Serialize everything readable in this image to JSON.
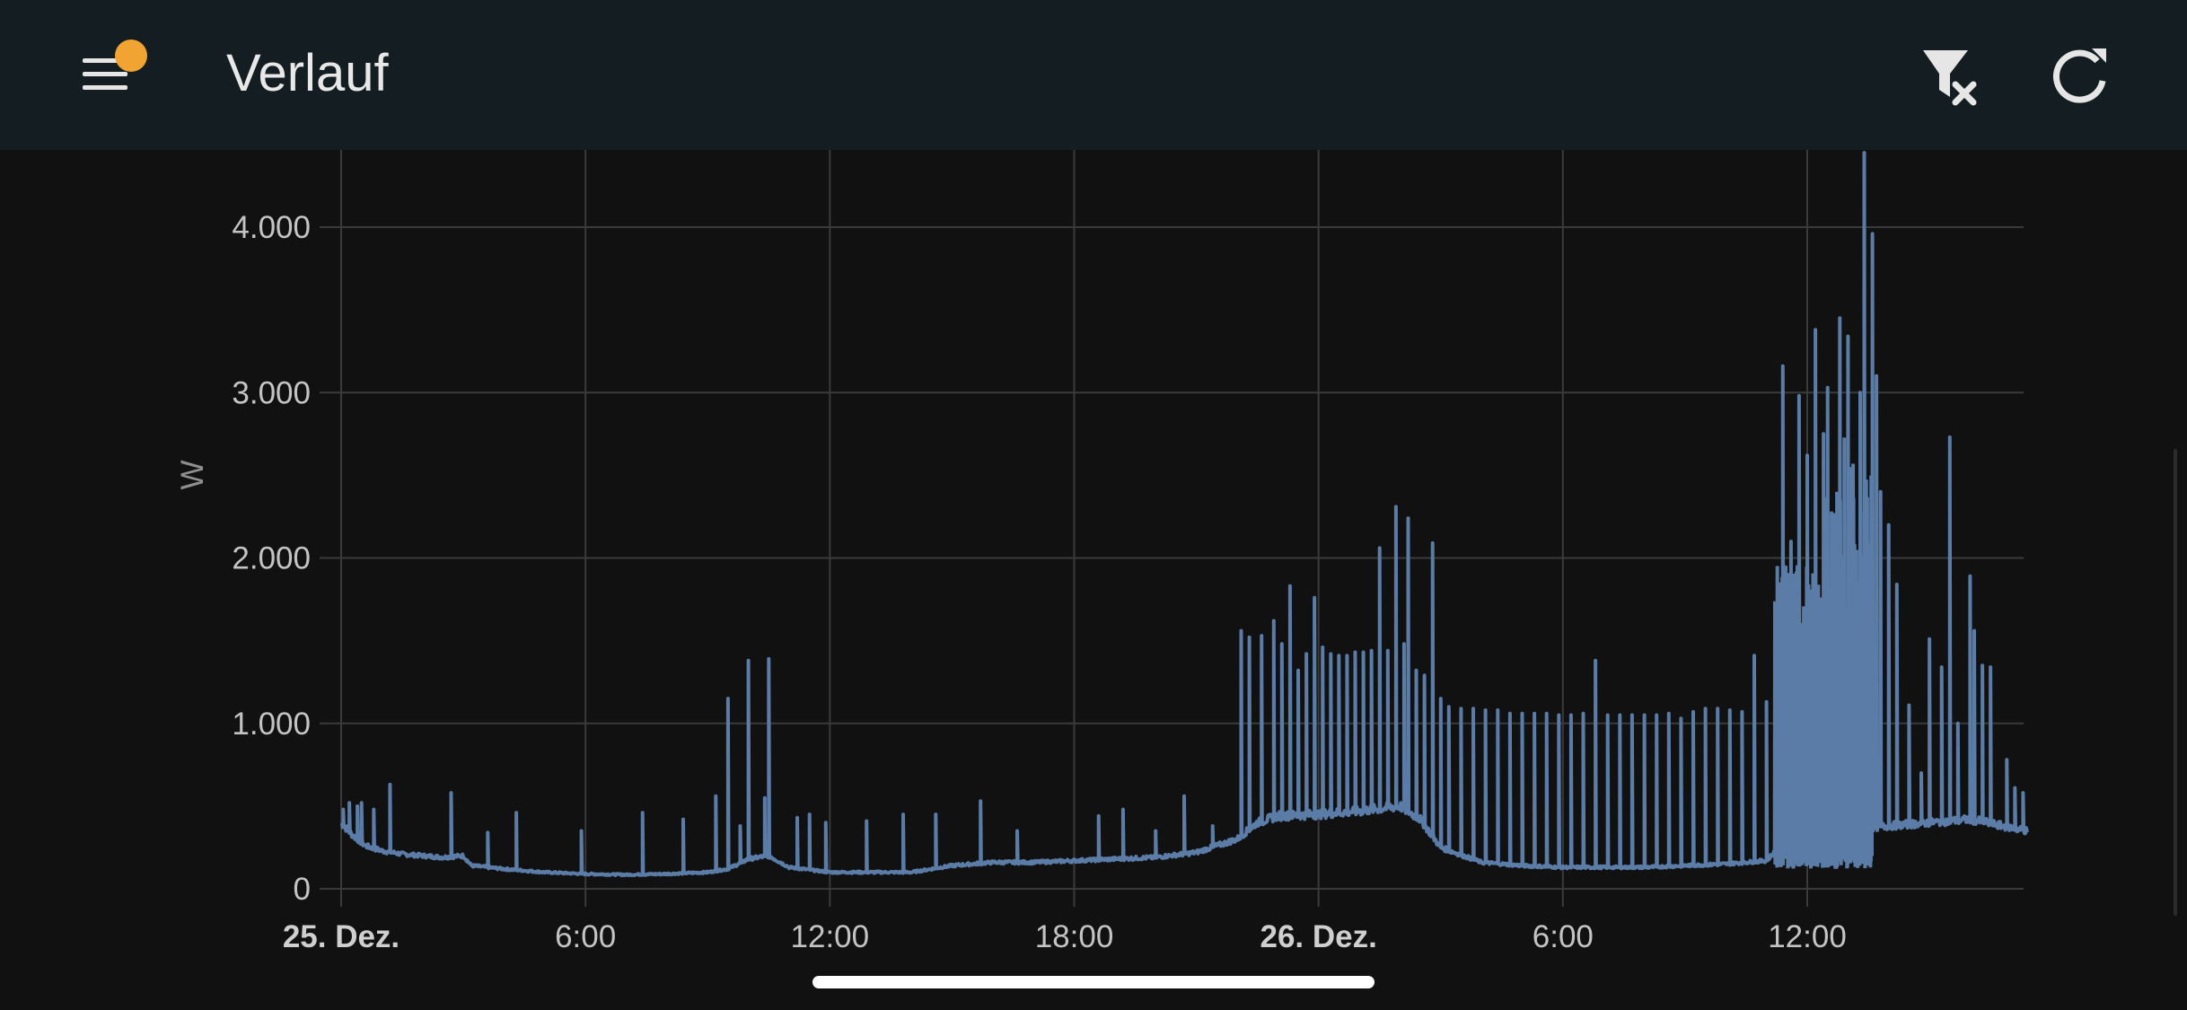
{
  "toolbar": {
    "title": "Verlauf",
    "menu_icon": "menu-icon",
    "notification_badge_color": "#f1a431",
    "filter_icon": "filter-remove-icon",
    "refresh_icon": "refresh-icon"
  },
  "chart_data": {
    "type": "line",
    "title": "",
    "ylabel": "W",
    "xlabel": "",
    "x_unit": "hours from 25. Dez. 00:00",
    "xlim": [
      0,
      41.4
    ],
    "ylim": [
      0,
      4400
    ],
    "grid": true,
    "series_color": "#5a7ca6",
    "x_ticks": [
      {
        "value": 0,
        "label": "25. Dez.",
        "major": true
      },
      {
        "value": 6,
        "label": "6:00",
        "major": false
      },
      {
        "value": 12,
        "label": "12:00",
        "major": false
      },
      {
        "value": 18,
        "label": "18:00",
        "major": false
      },
      {
        "value": 24,
        "label": "26. Dez.",
        "major": true
      },
      {
        "value": 30,
        "label": "6:00",
        "major": false
      },
      {
        "value": 36,
        "label": "12:00",
        "major": false
      }
    ],
    "y_ticks": [
      {
        "value": 0,
        "label": "0"
      },
      {
        "value": 1000,
        "label": "1.000"
      },
      {
        "value": 2000,
        "label": "2.000"
      },
      {
        "value": 3000,
        "label": "3.000"
      },
      {
        "value": 4000,
        "label": "4.000"
      }
    ],
    "series": [
      {
        "name": "",
        "baseline": [
          [
            0,
            400
          ],
          [
            0.3,
            320
          ],
          [
            0.6,
            260
          ],
          [
            1,
            230
          ],
          [
            1.5,
            210
          ],
          [
            2,
            200
          ],
          [
            2.5,
            190
          ],
          [
            3,
            200
          ],
          [
            3.2,
            140
          ],
          [
            4,
            120
          ],
          [
            5,
            100
          ],
          [
            6,
            90
          ],
          [
            7,
            85
          ],
          [
            8,
            90
          ],
          [
            9,
            100
          ],
          [
            9.5,
            120
          ],
          [
            10,
            180
          ],
          [
            10.5,
            200
          ],
          [
            11,
            130
          ],
          [
            12,
            100
          ],
          [
            13,
            100
          ],
          [
            14,
            100
          ],
          [
            15,
            140
          ],
          [
            16,
            160
          ],
          [
            17,
            160
          ],
          [
            18,
            170
          ],
          [
            19,
            180
          ],
          [
            20,
            190
          ],
          [
            21,
            220
          ],
          [
            21.5,
            260
          ],
          [
            22,
            300
          ],
          [
            22.5,
            400
          ],
          [
            23,
            440
          ],
          [
            24,
            450
          ],
          [
            25,
            470
          ],
          [
            26,
            500
          ],
          [
            26.5,
            420
          ],
          [
            27,
            250
          ],
          [
            28,
            160
          ],
          [
            29,
            140
          ],
          [
            30,
            130
          ],
          [
            31,
            130
          ],
          [
            32,
            130
          ],
          [
            33,
            140
          ],
          [
            34,
            150
          ],
          [
            35,
            170
          ],
          [
            35.5,
            300
          ],
          [
            36,
            350
          ],
          [
            37,
            360
          ],
          [
            38,
            380
          ],
          [
            39,
            400
          ],
          [
            40,
            420
          ],
          [
            41.4,
            350
          ]
        ],
        "spikes": [
          [
            0.05,
            480
          ],
          [
            0.2,
            520
          ],
          [
            0.4,
            500
          ],
          [
            0.5,
            520
          ],
          [
            0.8,
            480
          ],
          [
            1.2,
            600
          ],
          [
            1.2,
            630
          ],
          [
            2.7,
            580
          ],
          [
            3.6,
            340
          ],
          [
            4.3,
            460
          ],
          [
            5.9,
            350
          ],
          [
            7.4,
            460
          ],
          [
            8.4,
            420
          ],
          [
            9.2,
            560
          ],
          [
            9.5,
            1150
          ],
          [
            9.8,
            380
          ],
          [
            10.0,
            1380
          ],
          [
            10.4,
            550
          ],
          [
            10.5,
            1390
          ],
          [
            11.2,
            430
          ],
          [
            11.5,
            450
          ],
          [
            11.9,
            400
          ],
          [
            12.9,
            410
          ],
          [
            13.8,
            450
          ],
          [
            14.6,
            450
          ],
          [
            15.7,
            530
          ],
          [
            16.6,
            350
          ],
          [
            18.6,
            440
          ],
          [
            19.2,
            480
          ],
          [
            20.0,
            350
          ],
          [
            20.7,
            560
          ],
          [
            21.4,
            380
          ],
          [
            22.1,
            1560
          ],
          [
            22.3,
            1520
          ],
          [
            22.6,
            1530
          ],
          [
            22.9,
            1620
          ],
          [
            23.1,
            1480
          ],
          [
            23.3,
            1830
          ],
          [
            23.5,
            1320
          ],
          [
            23.7,
            1420
          ],
          [
            23.9,
            1760
          ],
          [
            24.1,
            1460
          ],
          [
            24.3,
            1420
          ],
          [
            24.5,
            1410
          ],
          [
            24.7,
            1410
          ],
          [
            24.9,
            1430
          ],
          [
            25.1,
            1430
          ],
          [
            25.3,
            1440
          ],
          [
            25.5,
            2060
          ],
          [
            25.7,
            1440
          ],
          [
            25.9,
            2310
          ],
          [
            26.1,
            1480
          ],
          [
            26.2,
            2240
          ],
          [
            26.4,
            1320
          ],
          [
            26.6,
            1290
          ],
          [
            26.8,
            2090
          ],
          [
            27.0,
            1150
          ],
          [
            27.2,
            1100
          ],
          [
            27.5,
            1090
          ],
          [
            27.8,
            1090
          ],
          [
            28.1,
            1080
          ],
          [
            28.4,
            1080
          ],
          [
            28.7,
            1060
          ],
          [
            29.0,
            1060
          ],
          [
            29.3,
            1060
          ],
          [
            29.6,
            1060
          ],
          [
            29.9,
            1050
          ],
          [
            30.2,
            1050
          ],
          [
            30.5,
            1060
          ],
          [
            30.8,
            1380
          ],
          [
            31.1,
            1050
          ],
          [
            31.4,
            1050
          ],
          [
            31.7,
            1050
          ],
          [
            32.0,
            1050
          ],
          [
            32.3,
            1050
          ],
          [
            32.6,
            1060
          ],
          [
            32.9,
            1030
          ],
          [
            33.2,
            1070
          ],
          [
            33.5,
            1090
          ],
          [
            33.8,
            1090
          ],
          [
            34.1,
            1080
          ],
          [
            34.4,
            1070
          ],
          [
            34.7,
            1410
          ],
          [
            35.0,
            1130
          ],
          [
            35.3,
            1150
          ],
          [
            35.4,
            3160
          ],
          [
            35.6,
            2100
          ],
          [
            35.8,
            2980
          ],
          [
            36.0,
            2620
          ],
          [
            36.2,
            3380
          ],
          [
            36.4,
            2750
          ],
          [
            36.5,
            3030
          ],
          [
            36.6,
            2260
          ],
          [
            36.8,
            3450
          ],
          [
            36.9,
            2010
          ],
          [
            37.0,
            3340
          ],
          [
            37.3,
            3000
          ],
          [
            37.4,
            4450
          ],
          [
            37.6,
            3960
          ],
          [
            37.7,
            3100
          ],
          [
            37.8,
            2400
          ],
          [
            38.0,
            2200
          ],
          [
            38.2,
            1840
          ],
          [
            38.5,
            1110
          ],
          [
            38.8,
            700
          ],
          [
            39.0,
            1510
          ],
          [
            39.3,
            1340
          ],
          [
            39.5,
            2730
          ],
          [
            39.7,
            1000
          ],
          [
            40.0,
            1890
          ],
          [
            40.1,
            1560
          ],
          [
            40.3,
            1350
          ],
          [
            40.5,
            1340
          ],
          [
            40.9,
            780
          ],
          [
            41.1,
            610
          ],
          [
            41.3,
            580
          ]
        ],
        "dense_region": {
          "x_start": 35.2,
          "x_end": 37.6,
          "low": 200,
          "high": 2000
        }
      }
    ]
  }
}
